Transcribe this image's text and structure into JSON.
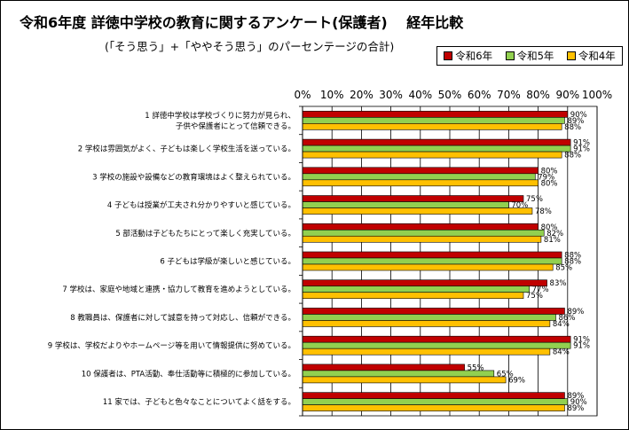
{
  "title": "令和6年度 詳徳中学校の教育に関するアンケート(保護者)　 経年比較",
  "subtitle": "(「そう思う」+「ややそう思う」のパーセンテージの合計)",
  "legend": [
    {
      "label": "令和6年",
      "color": "#c00000"
    },
    {
      "label": "令和5年",
      "color": "#92d050"
    },
    {
      "label": "令和4年",
      "color": "#ffc000"
    }
  ],
  "chart_data": {
    "type": "bar",
    "orientation": "horizontal",
    "title": "令和6年度 詳徳中学校の教育に関するアンケート(保護者)　 経年比較",
    "subtitle": "(「そう思う」+「ややそう思う」のパーセンテージの合計)",
    "xlim": [
      0,
      100
    ],
    "x_ticks": [
      "0%",
      "10%",
      "20%",
      "30%",
      "40%",
      "50%",
      "60%",
      "70%",
      "80%",
      "90%",
      "100%"
    ],
    "categories": [
      [
        "1 詳徳中学校は学校づくりに努力が見られ、",
        "子供や保護者にとって信頼できる。"
      ],
      [
        "2 学校は雰囲気がよく、子どもは楽しく学校生活を送っている。"
      ],
      [
        "3 学校の施設や設備などの教育環境はよく整えられている。"
      ],
      [
        "4 子どもは授業が工夫され分かりやすいと感じている。"
      ],
      [
        "5 部活動は子どもたちにとって楽しく充実している。"
      ],
      [
        "6 子どもは学級が楽しいと感じている。"
      ],
      [
        "7 学校は、家庭や地域と連携・協力して教育を進めようとしている。"
      ],
      [
        "8 教職員は、保護者に対して誠意を持って対応し、信頼ができる。"
      ],
      [
        "9 学校は、学校だよりやホームページ等を用いて情報提供に努めている。"
      ],
      [
        "10 保護者は、PTA活動、奉仕活動等に積極的に参加している。"
      ],
      [
        "11 家では、子どもと色々なことについてよく話をする。"
      ]
    ],
    "series": [
      {
        "name": "令和6年",
        "color": "#c00000",
        "values": [
          90,
          91,
          80,
          75,
          80,
          88,
          83,
          89,
          91,
          55,
          89
        ]
      },
      {
        "name": "令和5年",
        "color": "#92d050",
        "values": [
          89,
          91,
          79,
          70,
          82,
          88,
          77,
          86,
          91,
          65,
          90
        ]
      },
      {
        "name": "令和4年",
        "color": "#ffc000",
        "values": [
          88,
          88,
          80,
          78,
          81,
          85,
          75,
          84,
          84,
          69,
          89
        ]
      }
    ],
    "value_label_suffix": "%",
    "grid": true
  }
}
